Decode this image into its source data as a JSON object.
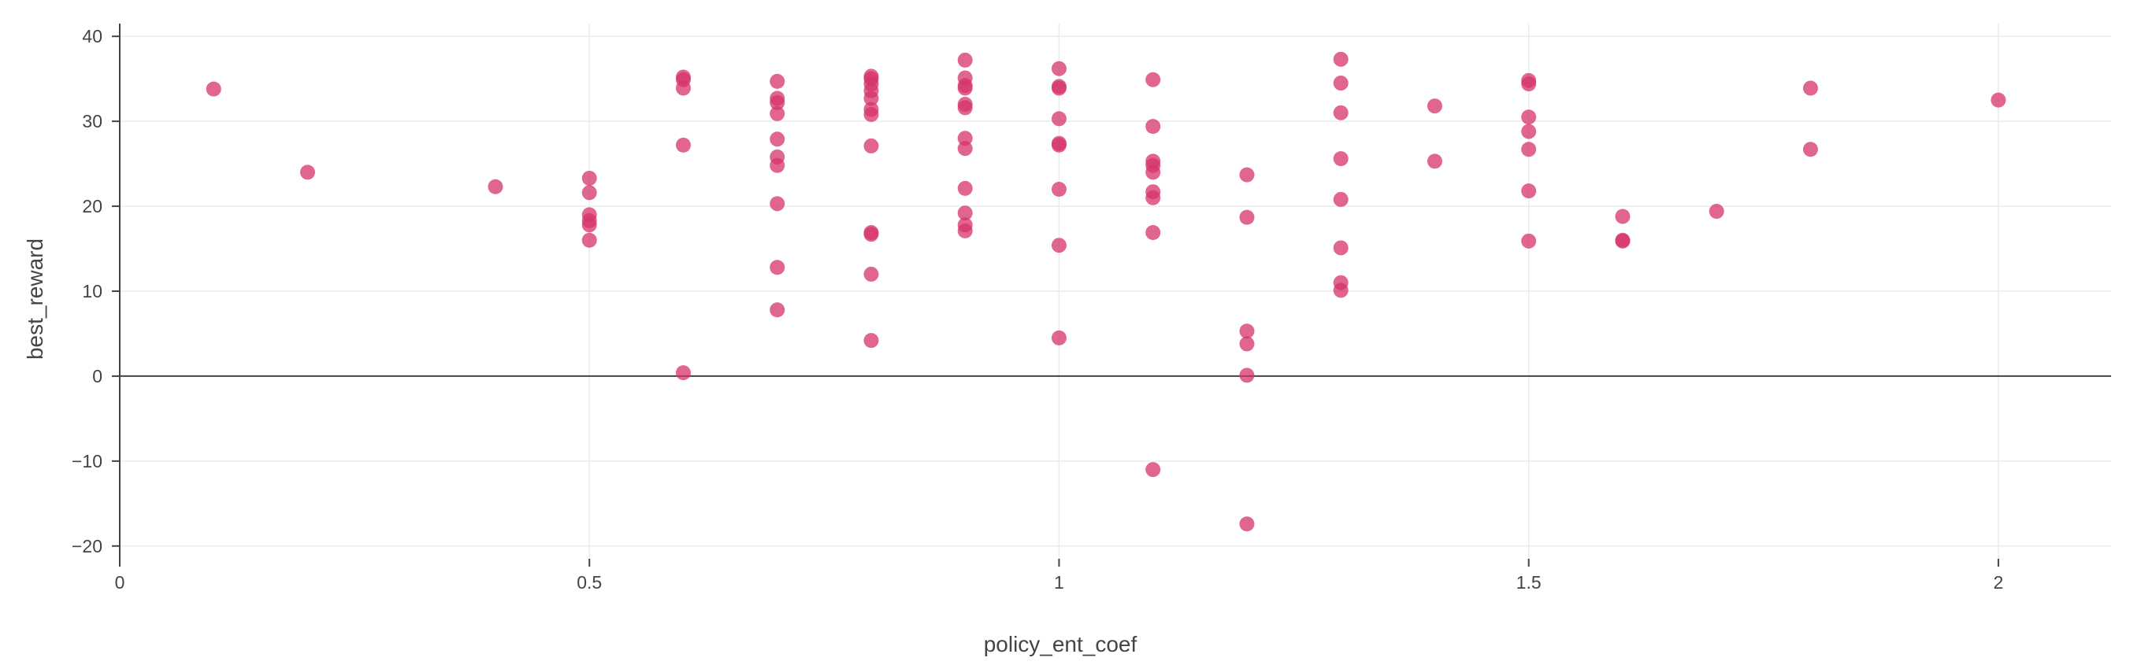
{
  "chart_data": {
    "type": "scatter",
    "xlabel": "policy_ent_coef",
    "ylabel": "best_reward",
    "xlim": [
      0,
      2.12
    ],
    "ylim": [
      -21.5,
      41.5
    ],
    "x_ticks": [
      0,
      0.5,
      1,
      1.5,
      2
    ],
    "x_tick_labels": [
      "0",
      "0.5",
      "1",
      "1.5",
      "2"
    ],
    "y_ticks": [
      -20,
      -10,
      0,
      10,
      20,
      30,
      40
    ],
    "y_tick_labels": [
      "−20",
      "−10",
      "0",
      "10",
      "20",
      "30",
      "40"
    ],
    "grid": true,
    "legend": "none",
    "marker_color": "#d6336c",
    "points": [
      [
        0.1,
        33.8
      ],
      [
        0.2,
        24.0
      ],
      [
        0.4,
        22.3
      ],
      [
        0.5,
        23.3
      ],
      [
        0.5,
        21.6
      ],
      [
        0.5,
        19.0
      ],
      [
        0.5,
        18.3
      ],
      [
        0.5,
        17.8
      ],
      [
        0.5,
        16.0
      ],
      [
        0.6,
        35.2
      ],
      [
        0.6,
        34.9
      ],
      [
        0.6,
        33.9
      ],
      [
        0.6,
        27.2
      ],
      [
        0.6,
        0.4
      ],
      [
        0.7,
        34.7
      ],
      [
        0.7,
        32.7
      ],
      [
        0.7,
        32.2
      ],
      [
        0.7,
        30.9
      ],
      [
        0.7,
        27.9
      ],
      [
        0.7,
        25.8
      ],
      [
        0.7,
        24.8
      ],
      [
        0.7,
        20.3
      ],
      [
        0.7,
        12.8
      ],
      [
        0.7,
        7.8
      ],
      [
        0.8,
        35.3
      ],
      [
        0.8,
        35.0
      ],
      [
        0.8,
        34.4
      ],
      [
        0.8,
        33.6
      ],
      [
        0.8,
        32.7
      ],
      [
        0.8,
        31.4
      ],
      [
        0.8,
        30.8
      ],
      [
        0.8,
        27.1
      ],
      [
        0.8,
        16.9
      ],
      [
        0.8,
        16.7
      ],
      [
        0.8,
        12.0
      ],
      [
        0.8,
        4.2
      ],
      [
        0.9,
        37.2
      ],
      [
        0.9,
        35.1
      ],
      [
        0.9,
        34.2
      ],
      [
        0.9,
        33.9
      ],
      [
        0.9,
        32.0
      ],
      [
        0.9,
        31.6
      ],
      [
        0.9,
        28.0
      ],
      [
        0.9,
        26.8
      ],
      [
        0.9,
        22.1
      ],
      [
        0.9,
        19.2
      ],
      [
        0.9,
        17.8
      ],
      [
        0.9,
        17.1
      ],
      [
        1.0,
        36.2
      ],
      [
        1.0,
        34.1
      ],
      [
        1.0,
        33.9
      ],
      [
        1.0,
        30.3
      ],
      [
        1.0,
        27.4
      ],
      [
        1.0,
        27.2
      ],
      [
        1.0,
        22.0
      ],
      [
        1.0,
        15.4
      ],
      [
        1.0,
        4.5
      ],
      [
        1.1,
        34.9
      ],
      [
        1.1,
        29.4
      ],
      [
        1.1,
        25.3
      ],
      [
        1.1,
        24.8
      ],
      [
        1.1,
        24.0
      ],
      [
        1.1,
        21.7
      ],
      [
        1.1,
        21.0
      ],
      [
        1.1,
        16.9
      ],
      [
        1.1,
        -11.0
      ],
      [
        1.2,
        23.7
      ],
      [
        1.2,
        18.7
      ],
      [
        1.2,
        5.3
      ],
      [
        1.2,
        3.8
      ],
      [
        1.2,
        0.1
      ],
      [
        1.2,
        -17.4
      ],
      [
        1.3,
        37.3
      ],
      [
        1.3,
        34.5
      ],
      [
        1.3,
        31.0
      ],
      [
        1.3,
        25.6
      ],
      [
        1.3,
        20.8
      ],
      [
        1.3,
        15.1
      ],
      [
        1.3,
        11.0
      ],
      [
        1.3,
        10.1
      ],
      [
        1.4,
        31.8
      ],
      [
        1.4,
        25.3
      ],
      [
        1.5,
        34.8
      ],
      [
        1.5,
        34.4
      ],
      [
        1.5,
        30.5
      ],
      [
        1.5,
        28.8
      ],
      [
        1.5,
        26.7
      ],
      [
        1.5,
        21.8
      ],
      [
        1.5,
        15.9
      ],
      [
        1.6,
        18.8
      ],
      [
        1.6,
        16.0
      ],
      [
        1.6,
        15.9
      ],
      [
        1.7,
        19.4
      ],
      [
        1.8,
        33.9
      ],
      [
        1.8,
        26.7
      ],
      [
        2.0,
        32.5
      ]
    ]
  }
}
